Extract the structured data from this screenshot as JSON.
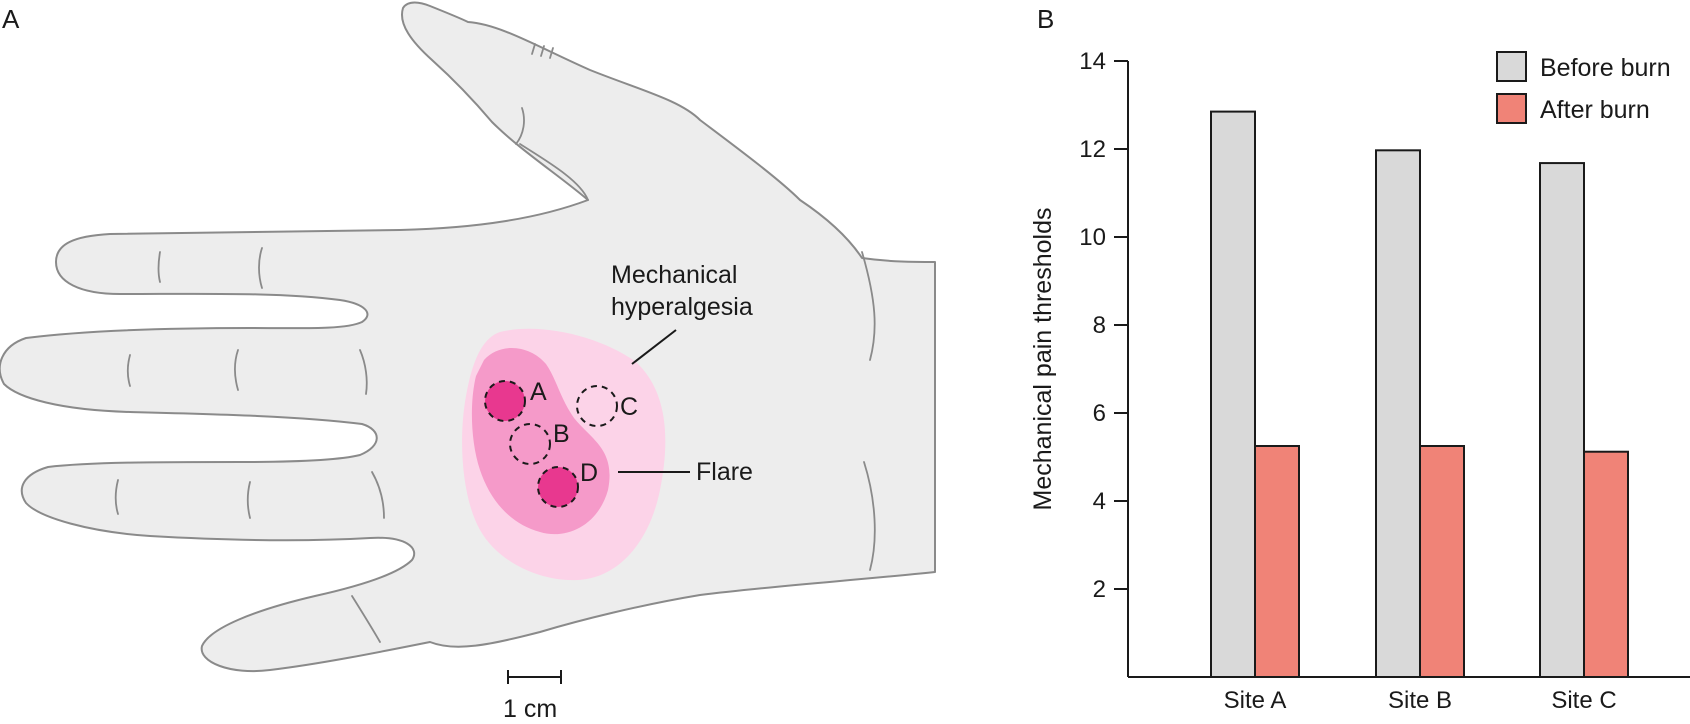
{
  "panels": {
    "a_label": "A",
    "b_label": "B"
  },
  "illustration": {
    "mechanical_label_line1": "Mechanical",
    "mechanical_label_line2": "hyperalgesia",
    "flare_label": "Flare",
    "site_labels": [
      "A",
      "B",
      "C",
      "D"
    ],
    "scale_bar_label": "1 cm",
    "colors": {
      "hand": "#ededed",
      "hand_outline": "#8a8a8a",
      "hyperalgesia_area": "#fcd3e8",
      "flare_area": "#f59ac9",
      "burn_site": "#e8388f"
    }
  },
  "chart_data": {
    "type": "bar",
    "categories": [
      "Site A",
      "Site B",
      "Site C"
    ],
    "series": [
      {
        "name": "Before burn",
        "color": "#d9d9d9",
        "values": [
          12.85,
          11.97,
          11.68
        ]
      },
      {
        "name": "After burn",
        "color": "#f08377",
        "values": [
          5.25,
          5.25,
          5.12
        ]
      }
    ],
    "xlabel": "",
    "ylabel": "Mechanical pain thresholds",
    "ylim": [
      0,
      14
    ],
    "yticks": [
      2,
      4,
      6,
      8,
      10,
      12,
      14
    ],
    "grid": false,
    "legend_position": "top-right"
  }
}
